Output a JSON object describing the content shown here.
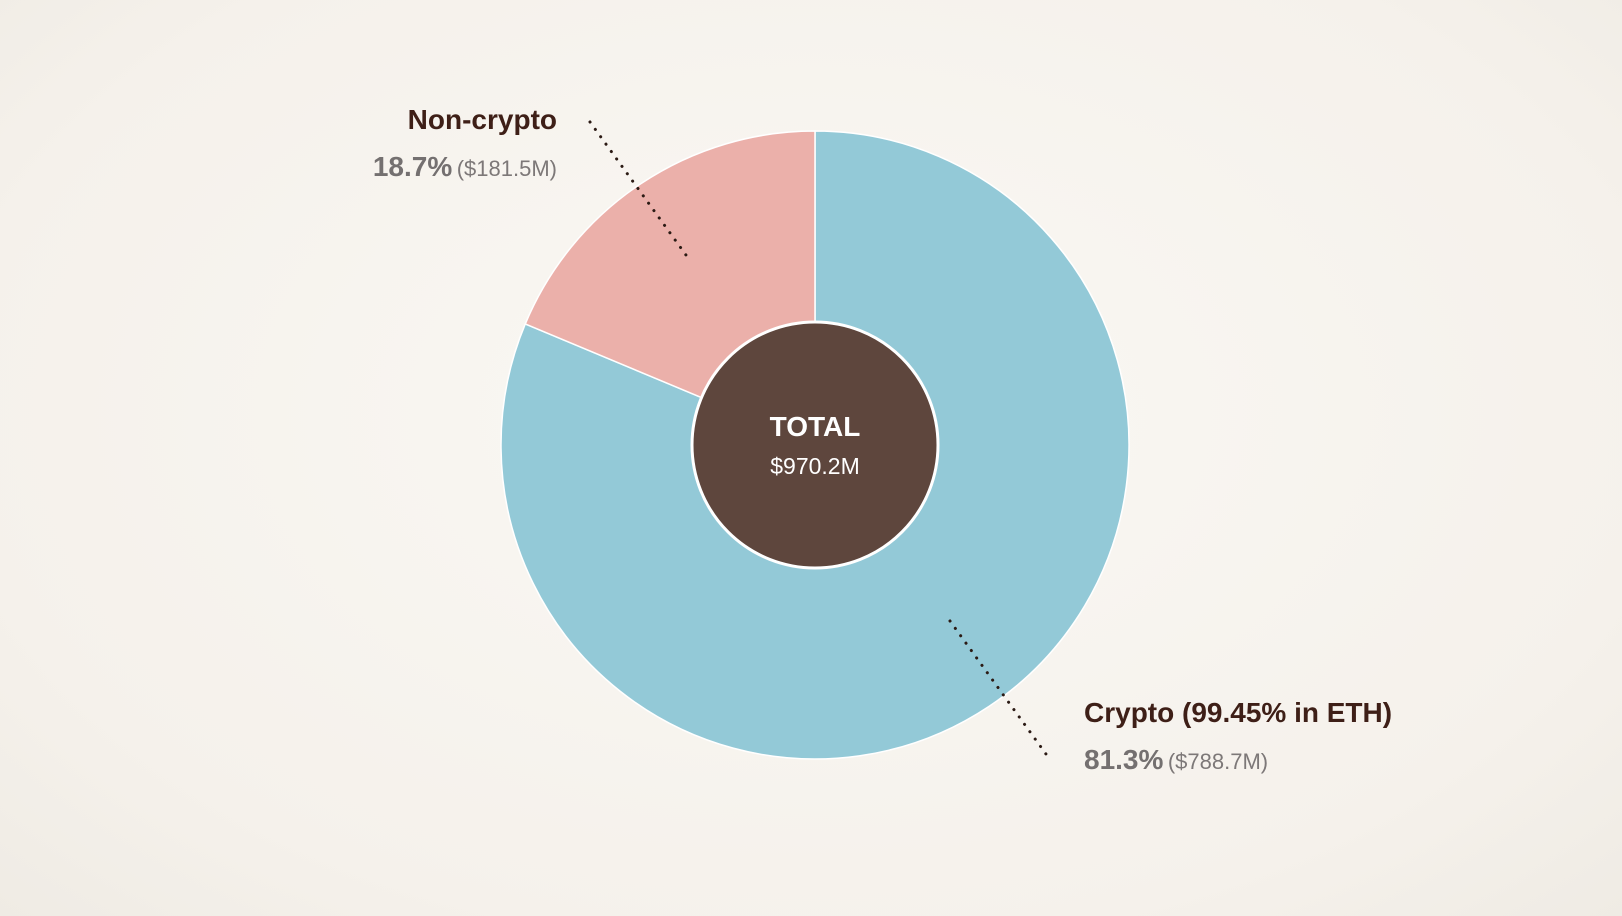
{
  "chart_data": {
    "type": "pie",
    "variant": "donut",
    "total_label": "TOTAL",
    "total_value": "$970.2M",
    "slices": [
      {
        "label": "Crypto (99.45% in ETH)",
        "percent": 81.3,
        "percent_text": "81.3%",
        "amount_text": "($788.7M)",
        "color": "#93c9d7"
      },
      {
        "label": "Non-crypto",
        "percent": 18.7,
        "percent_text": "18.7%",
        "amount_text": "($181.5M)",
        "color": "#ebb0aa"
      }
    ],
    "colors": {
      "center": "#5e463d",
      "label_text": "#3e1f17",
      "secondary_text": "#747070"
    }
  }
}
